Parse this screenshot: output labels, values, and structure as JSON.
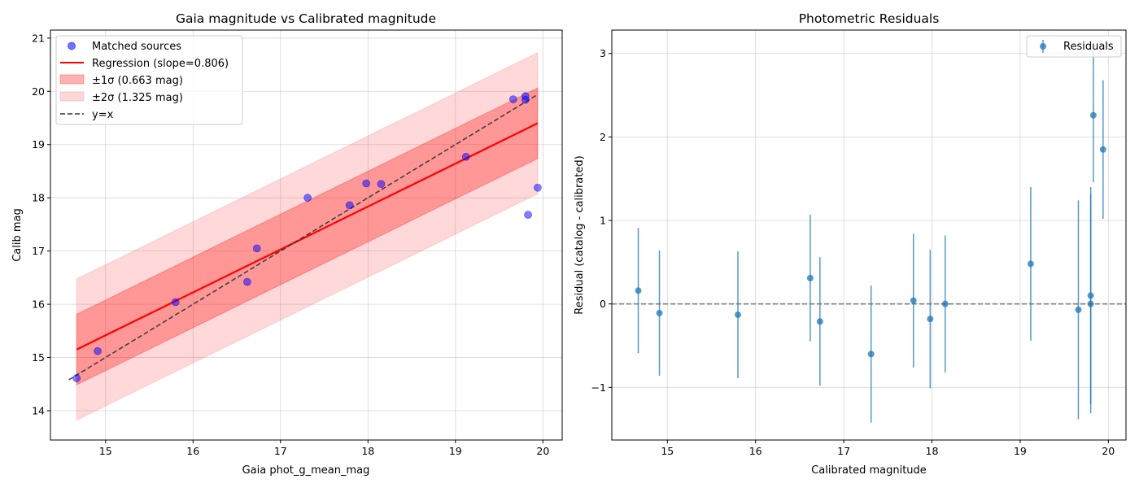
{
  "chart_data": [
    {
      "type": "scatter",
      "title": "Gaia magnitude vs Calibrated magnitude",
      "xlabel": "Gaia phot_g_mean_mag",
      "ylabel": "Calib mag",
      "xlim": [
        14.37,
        20.22
      ],
      "ylim": [
        13.45,
        21.15
      ],
      "xticks": [
        15,
        16,
        17,
        18,
        19,
        20
      ],
      "yticks": [
        14,
        15,
        16,
        17,
        18,
        19,
        20,
        21
      ],
      "grid": true,
      "legend_position": "top-left",
      "legend": [
        {
          "label": "Matched sources",
          "kind": "marker",
          "color": "#0000ff"
        },
        {
          "label": "Regression (slope=0.806)",
          "kind": "line",
          "color": "#ff0000"
        },
        {
          "label": "±1σ (0.663 mag)",
          "kind": "patch",
          "color": "#ff9999"
        },
        {
          "label": "±2σ (1.325 mag)",
          "kind": "patch",
          "color": "#ffd6d6"
        },
        {
          "label": "y=x",
          "kind": "dashed",
          "color": "#333333"
        }
      ],
      "points": {
        "x": [
          14.67,
          14.91,
          15.8,
          16.62,
          16.73,
          17.31,
          17.79,
          17.98,
          18.15,
          19.12,
          19.66,
          19.8,
          19.8,
          19.83,
          19.94
        ],
        "y": [
          14.61,
          15.12,
          16.04,
          16.42,
          17.05,
          18.0,
          17.86,
          18.27,
          18.26,
          18.77,
          19.85,
          19.91,
          19.84,
          17.68,
          18.19
        ]
      },
      "regression": {
        "slope": 0.806,
        "x_range": [
          14.67,
          19.94
        ],
        "y_at_start": 15.15,
        "y_at_end": 19.4
      },
      "sigma1": 0.663,
      "sigma2": 1.325,
      "identity_line": {
        "label": "y=x",
        "x_range": [
          14.58,
          19.94
        ]
      }
    },
    {
      "type": "scatter",
      "title": "Photometric Residuals",
      "xlabel": "Calibrated magnitude",
      "ylabel": "Residual (catalog - calibrated)",
      "xlim": [
        14.37,
        20.2
      ],
      "ylim": [
        -1.63,
        3.28
      ],
      "xticks": [
        15,
        16,
        17,
        18,
        19,
        20
      ],
      "yticks": [
        -1,
        0,
        1,
        2,
        3
      ],
      "grid": true,
      "legend_position": "top-right",
      "legend": [
        {
          "label": "Residuals",
          "kind": "errorbar",
          "color": "#1f77b4"
        }
      ],
      "reference_line_y": 0,
      "points": {
        "x": [
          14.67,
          14.91,
          15.8,
          16.62,
          16.73,
          17.31,
          17.79,
          17.98,
          18.15,
          19.12,
          19.66,
          19.8,
          19.8,
          19.83,
          19.94
        ],
        "y": [
          0.16,
          -0.11,
          -0.13,
          0.31,
          -0.21,
          -0.6,
          0.04,
          -0.18,
          0.0,
          0.48,
          -0.07,
          0.1,
          0.0,
          2.26,
          1.85
        ],
        "yerr": [
          0.75,
          0.75,
          0.76,
          0.76,
          0.77,
          0.82,
          0.8,
          0.83,
          0.82,
          0.92,
          1.31,
          1.3,
          1.31,
          0.8,
          0.83
        ]
      }
    }
  ]
}
